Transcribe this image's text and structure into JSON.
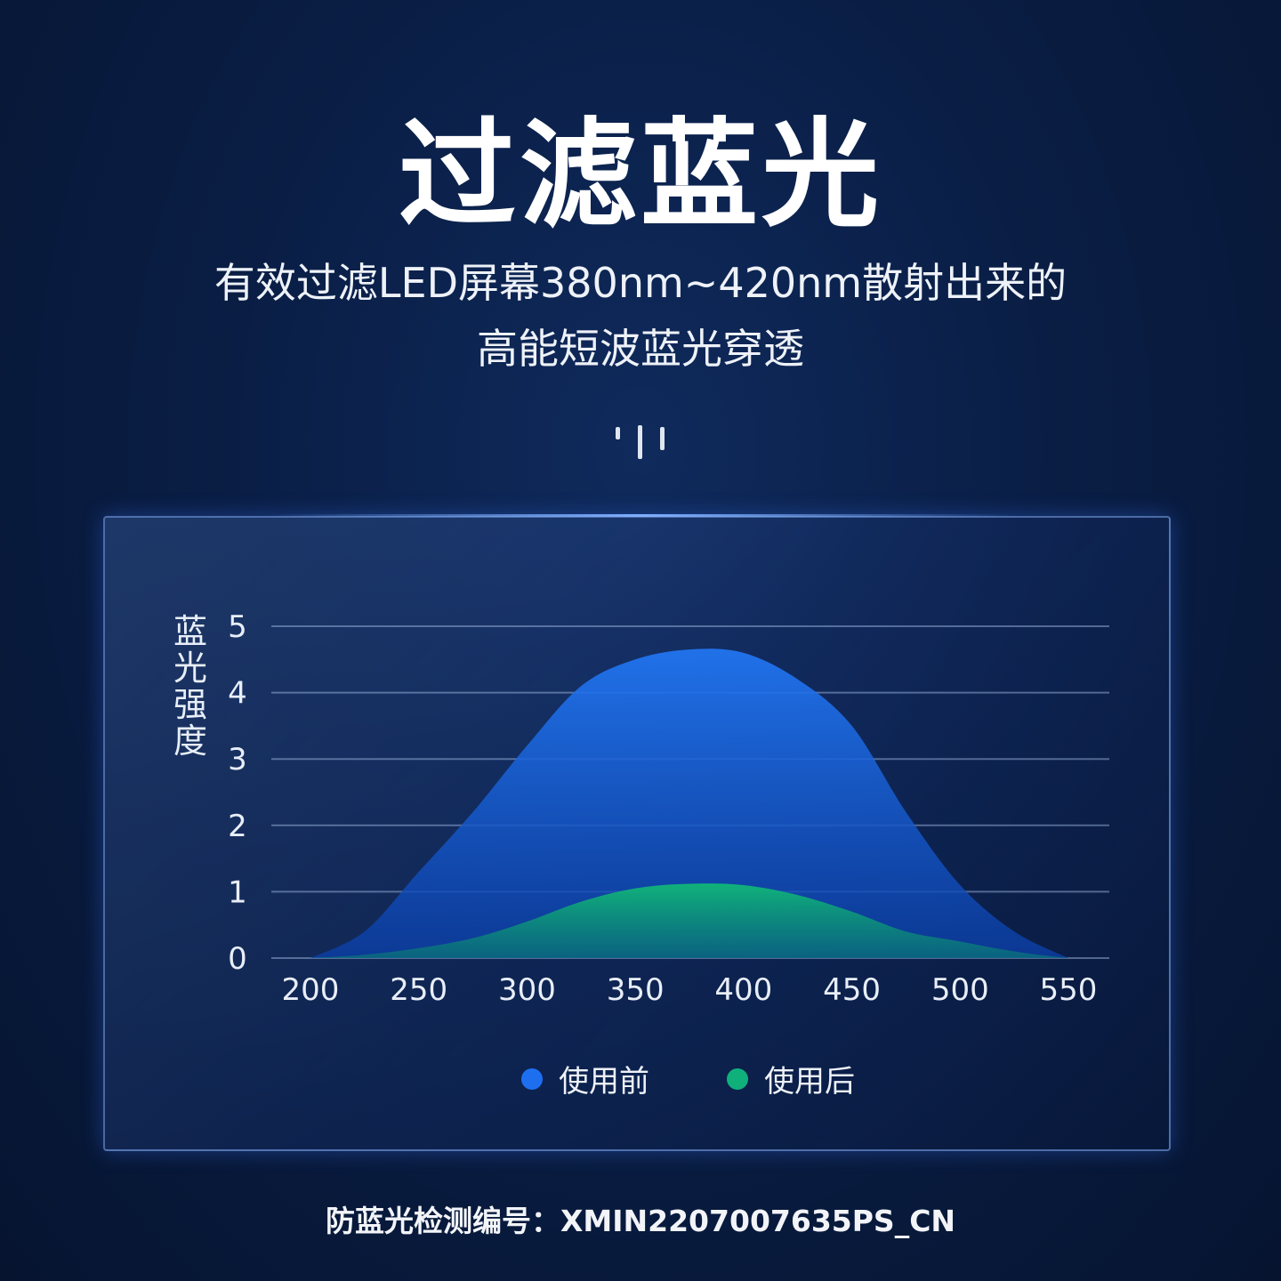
{
  "header": {
    "title": "过滤蓝光",
    "subtitle_line1": "有效过滤LED屏幕380nm~420nm散射出来的",
    "subtitle_line2": "高能短波蓝光穿透"
  },
  "footer": {
    "text": "防蓝光检测编号：XMIN2207007635PS_CN"
  },
  "chart_data": {
    "type": "area",
    "title": "",
    "xlabel": "",
    "ylabel": "蓝光强度",
    "xlim": [
      200,
      550
    ],
    "ylim": [
      0,
      5
    ],
    "x_ticks": [
      "200",
      "250",
      "300",
      "350",
      "400",
      "450",
      "500",
      "550"
    ],
    "y_ticks": [
      "0",
      "1",
      "2",
      "3",
      "4",
      "5"
    ],
    "grid": true,
    "legend_position": "bottom",
    "x": [
      200,
      225,
      250,
      275,
      300,
      325,
      350,
      375,
      400,
      425,
      450,
      475,
      500,
      525,
      550
    ],
    "series": [
      {
        "name": "使用前",
        "color": "#1e6ff0",
        "values": [
          0,
          0.4,
          1.3,
          2.2,
          3.2,
          4.1,
          4.5,
          4.65,
          4.6,
          4.2,
          3.5,
          2.2,
          1.1,
          0.4,
          0
        ]
      },
      {
        "name": "使用后",
        "color": "#0fb07a",
        "values": [
          0,
          0.05,
          0.15,
          0.3,
          0.55,
          0.85,
          1.05,
          1.12,
          1.1,
          0.95,
          0.7,
          0.4,
          0.25,
          0.1,
          0
        ]
      }
    ]
  }
}
